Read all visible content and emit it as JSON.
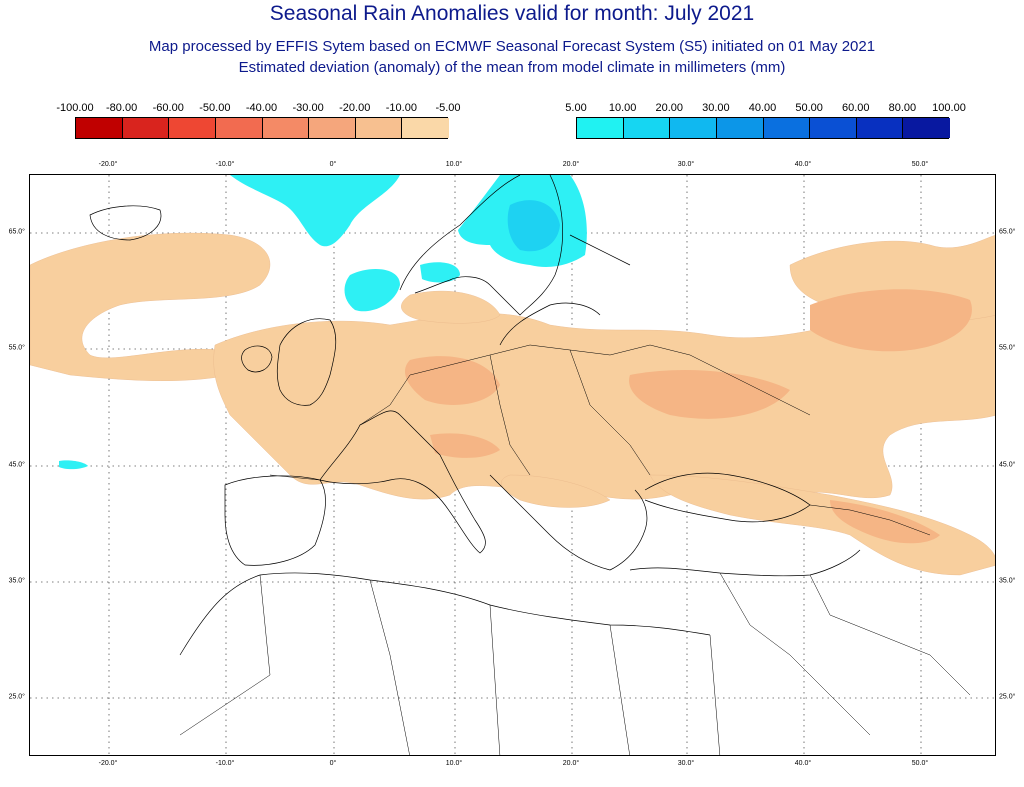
{
  "header": {
    "title": "Seasonal Rain Anomalies valid for month: July 2021",
    "subtitle_1": "Map processed by EFFIS Sytem based on ECMWF Seasonal Forecast System (S5) initiated on 01 May 2021",
    "subtitle_2": "Estimated deviation (anomaly) of the mean from model climate in millimeters (mm)"
  },
  "legend_dry": {
    "labels": [
      "-100.00",
      "-80.00",
      "-60.00",
      "-50.00",
      "-40.00",
      "-30.00",
      "-20.00",
      "-10.00",
      "-5.00"
    ],
    "colors": [
      "#c00000",
      "#d9241e",
      "#ee4733",
      "#f26b50",
      "#f48a66",
      "#f5a67c",
      "#f7c090",
      "#fad8a8"
    ]
  },
  "legend_wet": {
    "labels": [
      "5.00",
      "10.00",
      "20.00",
      "30.00",
      "40.00",
      "50.00",
      "60.00",
      "80.00",
      "100.00"
    ],
    "colors": [
      "#20f2f2",
      "#16d6f2",
      "#10b8f0",
      "#0c96e8",
      "#0a70e0",
      "#0a50d4",
      "#0830c0",
      "#0818a0"
    ]
  },
  "map": {
    "lon_ticks": [
      "-20.0°",
      "-10.0°",
      "0°",
      "10.0°",
      "20.0°",
      "30.0°",
      "40.0°",
      "50.0°"
    ],
    "lat_ticks": [
      "65.0°",
      "55.0°",
      "45.0°",
      "35.0°",
      "25.0°"
    ],
    "colors": {
      "dry_light": "#f8cf9e",
      "dry_medium": "#f5b585",
      "wet_light": "#2ef0f4",
      "wet_medium": "#1ed2f2",
      "coast": "#000000",
      "grid": "#555555"
    }
  }
}
